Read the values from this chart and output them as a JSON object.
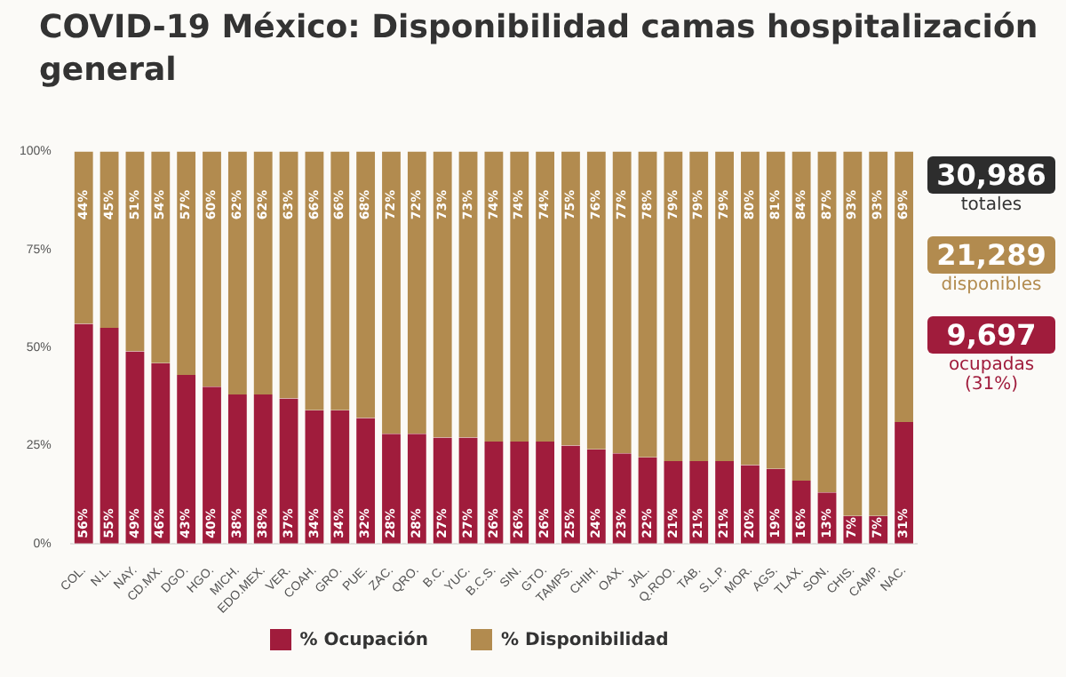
{
  "chart_data": {
    "type": "bar",
    "title": "COVID-19 México: Disponibilidad camas hospitalización general",
    "stacked": true,
    "legend": "bottom",
    "grid": false,
    "categories": [
      "COL.",
      "N.L.",
      "NAY.",
      "CD.MX.",
      "DGO.",
      "HGO.",
      "MICH.",
      "EDO.MEX.",
      "VER.",
      "COAH.",
      "GRO.",
      "PUE.",
      "ZAC.",
      "QRO.",
      "B.C.",
      "YUC.",
      "B.C.S.",
      "SIN.",
      "GTO.",
      "TAMPS.",
      "CHIH.",
      "OAX.",
      "JAL.",
      "Q.ROO.",
      "TAB.",
      "S.L.P.",
      "MOR.",
      "AGS.",
      "TLAX.",
      "SON.",
      "CHIS.",
      "CAMP.",
      "NAC."
    ],
    "series": [
      {
        "name": "% Ocupación",
        "color": "#a01c3c",
        "values": [
          56,
          55,
          49,
          46,
          43,
          40,
          38,
          38,
          37,
          34,
          34,
          32,
          28,
          28,
          27,
          27,
          26,
          26,
          26,
          25,
          24,
          23,
          22,
          21,
          21,
          21,
          20,
          19,
          16,
          13,
          7,
          7,
          31
        ],
        "value_labels": [
          "56%",
          "55%",
          "49%",
          "46%",
          "43%",
          "40%",
          "38%",
          "38%",
          "37%",
          "34%",
          "34%",
          "32%",
          "28%",
          "28%",
          "27%",
          "27%",
          "26%",
          "26%",
          "26%",
          "25%",
          "24%",
          "23%",
          "22%",
          "21%",
          "21%",
          "21%",
          "20%",
          "19%",
          "16%",
          "13%",
          "7%",
          "7%",
          "31%"
        ]
      },
      {
        "name": "% Disponibilidad",
        "color": "#b28b4f",
        "values": [
          44,
          45,
          51,
          54,
          57,
          60,
          62,
          62,
          63,
          66,
          66,
          68,
          72,
          72,
          73,
          73,
          74,
          74,
          74,
          75,
          76,
          77,
          78,
          79,
          79,
          79,
          80,
          81,
          84,
          87,
          93,
          93,
          69
        ],
        "value_labels": [
          "44%",
          "45%",
          "51%",
          "54%",
          "57%",
          "60%",
          "62%",
          "62%",
          "63%",
          "66%",
          "66%",
          "68%",
          "72%",
          "72%",
          "73%",
          "73%",
          "74%",
          "74%",
          "74%",
          "75%",
          "76%",
          "77%",
          "78%",
          "79%",
          "79%",
          "79%",
          "80%",
          "81%",
          "84%",
          "87%",
          "93%",
          "93%",
          "69%"
        ]
      }
    ],
    "ylim": [
      0,
      100
    ],
    "yticks": [
      {
        "value": 0,
        "label": "0%"
      },
      {
        "value": 25,
        "label": "25%"
      },
      {
        "value": 50,
        "label": "50%"
      },
      {
        "value": 75,
        "label": "75%"
      },
      {
        "value": 100,
        "label": "100%"
      }
    ],
    "annotations": [
      "30,986",
      "totales",
      "21,289",
      "disponibles",
      "9,697",
      "ocupadas (31%)"
    ]
  }
}
